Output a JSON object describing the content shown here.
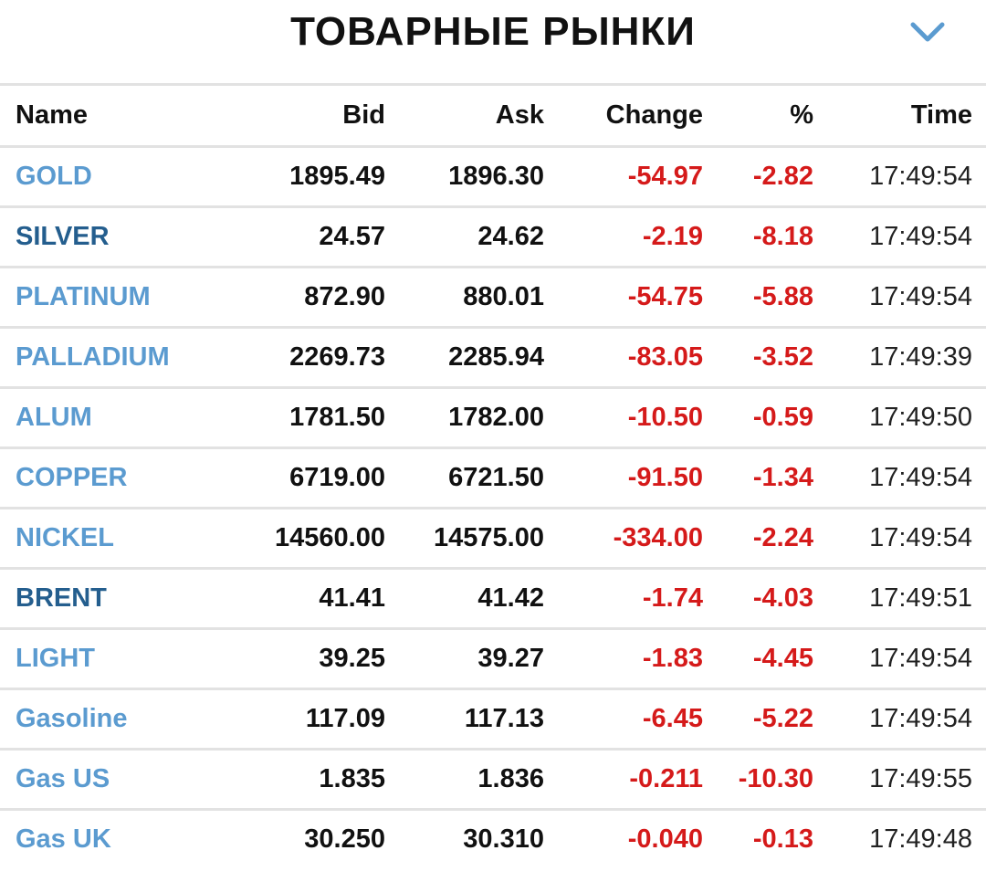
{
  "header": {
    "title": "ТОВАРНЫЕ РЫНКИ",
    "menu_icon": "chevron-down-icon"
  },
  "table": {
    "columns": {
      "name": "Name",
      "bid": "Bid",
      "ask": "Ask",
      "change": "Change",
      "pct": "%",
      "time": "Time"
    },
    "colors": {
      "link_light": "#5b9bd0",
      "link_dark": "#245e8e",
      "negative": "#d51a1a"
    },
    "rows": [
      {
        "name": "GOLD",
        "bid": "1895.49",
        "ask": "1896.30",
        "change": "-54.97",
        "pct": "-2.82",
        "time": "17:49:54",
        "name_style": "light"
      },
      {
        "name": "SILVER",
        "bid": "24.57",
        "ask": "24.62",
        "change": "-2.19",
        "pct": "-8.18",
        "time": "17:49:54",
        "name_style": "dark"
      },
      {
        "name": "PLATINUM",
        "bid": "872.90",
        "ask": "880.01",
        "change": "-54.75",
        "pct": "-5.88",
        "time": "17:49:54",
        "name_style": "light"
      },
      {
        "name": "PALLADIUM",
        "bid": "2269.73",
        "ask": "2285.94",
        "change": "-83.05",
        "pct": "-3.52",
        "time": "17:49:39",
        "name_style": "light"
      },
      {
        "name": "ALUM",
        "bid": "1781.50",
        "ask": "1782.00",
        "change": "-10.50",
        "pct": "-0.59",
        "time": "17:49:50",
        "name_style": "light"
      },
      {
        "name": "COPPER",
        "bid": "6719.00",
        "ask": "6721.50",
        "change": "-91.50",
        "pct": "-1.34",
        "time": "17:49:54",
        "name_style": "light"
      },
      {
        "name": "NICKEL",
        "bid": "14560.00",
        "ask": "14575.00",
        "change": "-334.00",
        "pct": "-2.24",
        "time": "17:49:54",
        "name_style": "light"
      },
      {
        "name": "BRENT",
        "bid": "41.41",
        "ask": "41.42",
        "change": "-1.74",
        "pct": "-4.03",
        "time": "17:49:51",
        "name_style": "dark"
      },
      {
        "name": "LIGHT",
        "bid": "39.25",
        "ask": "39.27",
        "change": "-1.83",
        "pct": "-4.45",
        "time": "17:49:54",
        "name_style": "light"
      },
      {
        "name": "Gasoline",
        "bid": "117.09",
        "ask": "117.13",
        "change": "-6.45",
        "pct": "-5.22",
        "time": "17:49:54",
        "name_style": "light"
      },
      {
        "name": "Gas US",
        "bid": "1.835",
        "ask": "1.836",
        "change": "-0.211",
        "pct": "-10.30",
        "time": "17:49:55",
        "name_style": "light"
      },
      {
        "name": "Gas UK",
        "bid": "30.250",
        "ask": "30.310",
        "change": "-0.040",
        "pct": "-0.13",
        "time": "17:49:48",
        "name_style": "light"
      }
    ]
  }
}
